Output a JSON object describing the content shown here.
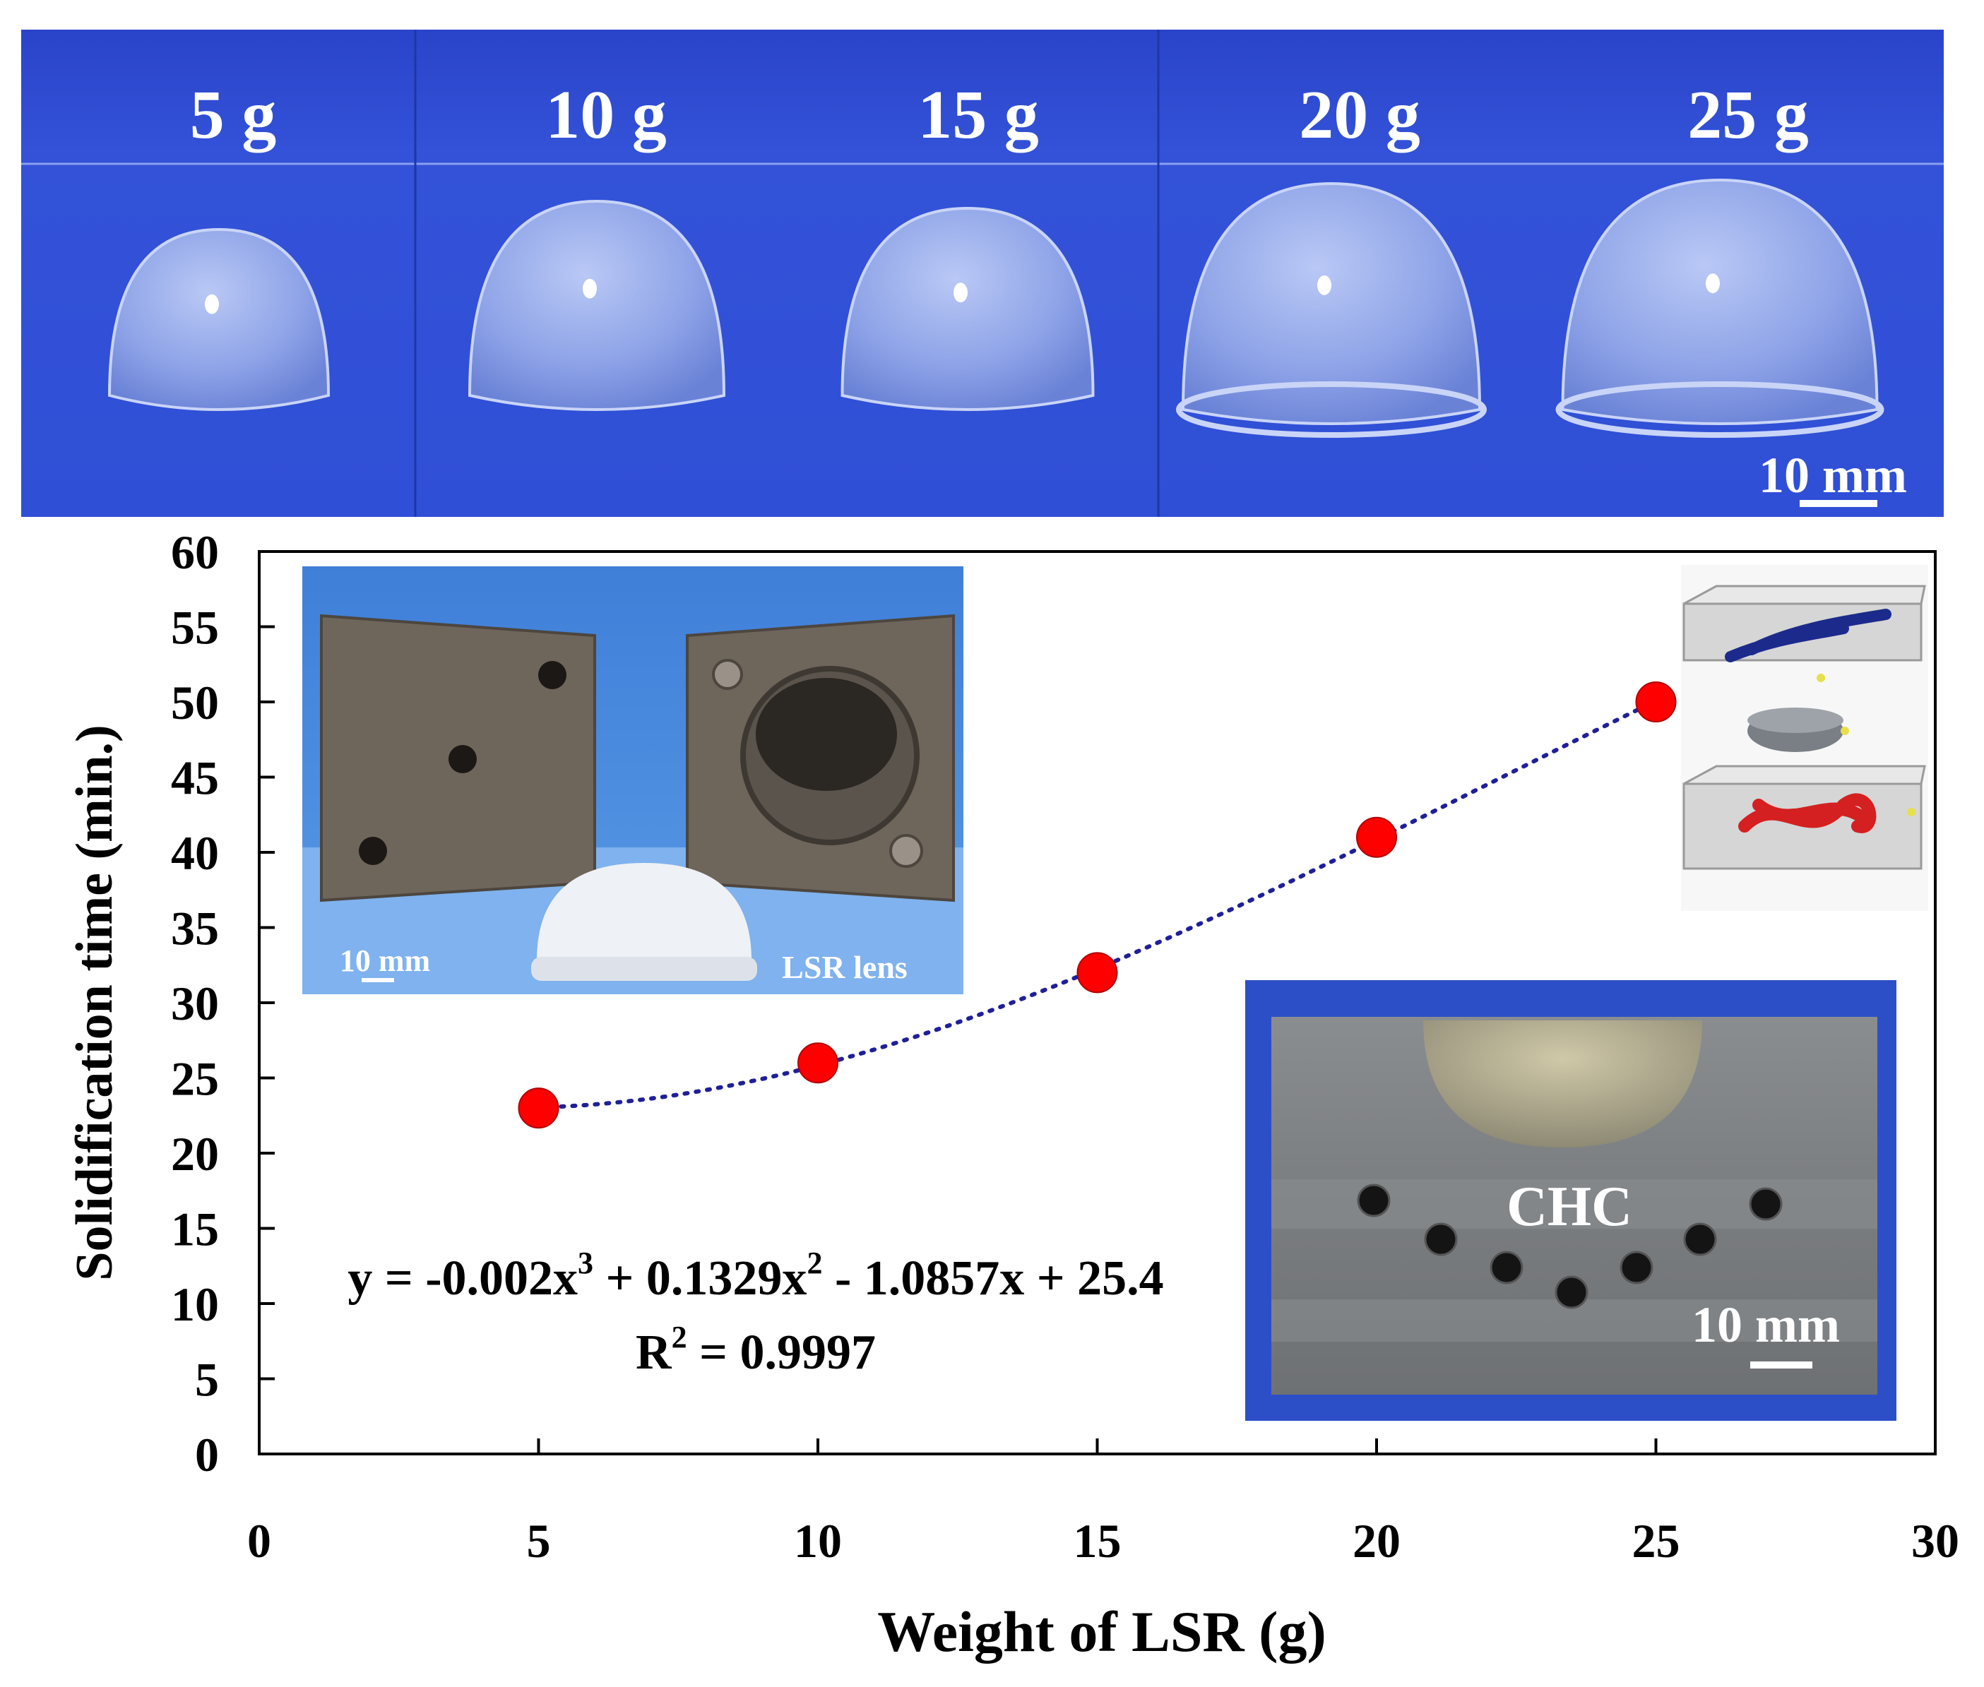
{
  "photo_strip": {
    "labels": [
      "5 g",
      "10 g",
      "15 g",
      "20 g",
      "25 g"
    ],
    "scale_bar": "10 mm"
  },
  "inset_mold": {
    "scale_bar": "10 mm",
    "lens_label": "LSR lens"
  },
  "inset_chc": {
    "label": "CHC",
    "scale_bar": "10 mm"
  },
  "equation": {
    "line1_parts": [
      "y = -0.002x",
      "3",
      " + 0.1329x",
      "2",
      " - 1.0857x + 25.4"
    ],
    "line2_parts": [
      "R",
      "2",
      " = 0.9997"
    ]
  },
  "colors": {
    "marker": "#ff0000",
    "fit_line": "#1f1f99",
    "photo_bg": "#2f4fd6"
  },
  "chart_data": {
    "type": "scatter",
    "x": [
      5,
      10,
      15,
      20,
      25
    ],
    "y": [
      23,
      26,
      32,
      41,
      50
    ],
    "xlabel": "Weight of LSR (g)",
    "ylabel": "Solidification time (min.)",
    "xlim": [
      0,
      30
    ],
    "ylim": [
      0,
      60
    ],
    "xticks": [
      0,
      5,
      10,
      15,
      20,
      25,
      30
    ],
    "yticks": [
      0,
      5,
      10,
      15,
      20,
      25,
      30,
      35,
      40,
      45,
      50,
      55,
      60
    ],
    "trendline": {
      "type": "polynomial",
      "order": 3,
      "coefficients": [
        -0.002,
        0.1329,
        -1.0857,
        25.4
      ],
      "r_squared": 0.9997
    },
    "grid": false,
    "legend": "none"
  }
}
